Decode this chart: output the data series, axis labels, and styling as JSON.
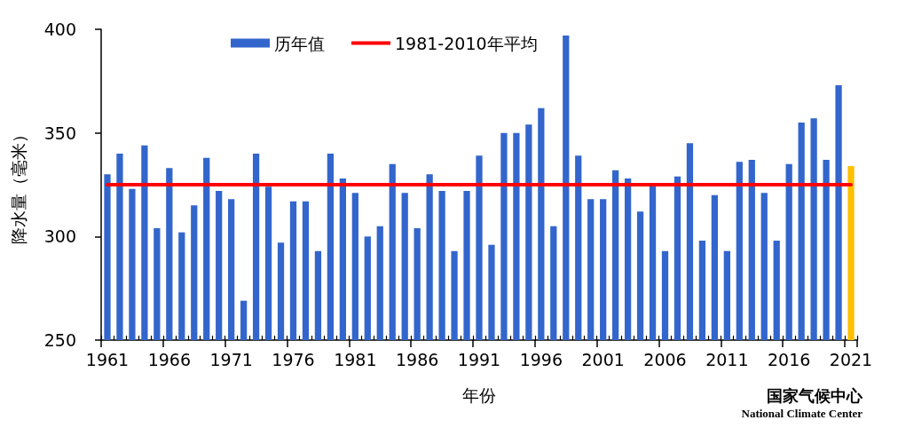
{
  "chart_data": {
    "type": "bar",
    "xlabel": "年份",
    "ylabel": "降水量（毫米）",
    "categories": [
      "1961",
      null,
      null,
      null,
      null,
      "1966",
      null,
      null,
      null,
      null,
      "1971",
      null,
      null,
      null,
      null,
      "1976",
      null,
      null,
      null,
      null,
      "1981",
      null,
      null,
      null,
      null,
      "1986",
      null,
      null,
      null,
      null,
      "1991",
      null,
      null,
      null,
      null,
      "1996",
      null,
      null,
      null,
      null,
      "2001",
      null,
      null,
      null,
      null,
      "2006",
      null,
      null,
      null,
      null,
      "2011",
      null,
      null,
      null,
      null,
      "2016",
      null,
      null,
      null,
      null,
      "2021"
    ],
    "series": [
      {
        "name": "历年值",
        "color": "#3366cc",
        "colors": [
          "#3366cc",
          "#3366cc",
          "#3366cc",
          "#3366cc",
          "#3366cc",
          "#3366cc",
          "#3366cc",
          "#3366cc",
          "#3366cc",
          "#3366cc",
          "#3366cc",
          "#3366cc",
          "#3366cc",
          "#3366cc",
          "#3366cc",
          "#3366cc",
          "#3366cc",
          "#3366cc",
          "#3366cc",
          "#3366cc",
          "#3366cc",
          "#3366cc",
          "#3366cc",
          "#3366cc",
          "#3366cc",
          "#3366cc",
          "#3366cc",
          "#3366cc",
          "#3366cc",
          "#3366cc",
          "#3366cc",
          "#3366cc",
          "#3366cc",
          "#3366cc",
          "#3366cc",
          "#3366cc",
          "#3366cc",
          "#3366cc",
          "#3366cc",
          "#3366cc",
          "#3366cc",
          "#3366cc",
          "#3366cc",
          "#3366cc",
          "#3366cc",
          "#3366cc",
          "#3366cc",
          "#3366cc",
          "#3366cc",
          "#3366cc",
          "#3366cc",
          "#3366cc",
          "#3366cc",
          "#3366cc",
          "#3366cc",
          "#3366cc",
          "#3366cc",
          "#3366cc",
          "#3366cc",
          "#3366cc",
          "#ffc000"
        ],
        "values": [
          330,
          340,
          323,
          344,
          304,
          333,
          302,
          315,
          338,
          322,
          318,
          269,
          340,
          324,
          297,
          317,
          317,
          293,
          340,
          328,
          321,
          300,
          305,
          335,
          321,
          304,
          330,
          322,
          293,
          322,
          339,
          296,
          350,
          350,
          354,
          362,
          305,
          397,
          339,
          318,
          318,
          332,
          328,
          312,
          325,
          293,
          329,
          345,
          298,
          320,
          293,
          336,
          337,
          321,
          298,
          335,
          355,
          357,
          337,
          373,
          334
        ]
      }
    ],
    "ylim": [
      250,
      400
    ],
    "yticks": [
      250,
      300,
      350,
      400
    ],
    "ref_lines": [
      {
        "axis": "y",
        "value": 325,
        "label": "1981-2010年平均",
        "color": "#ff0000",
        "line_style": "solid"
      }
    ],
    "legend": "top",
    "annotations": [
      "国家气候中心",
      "National Climate Center"
    ]
  }
}
